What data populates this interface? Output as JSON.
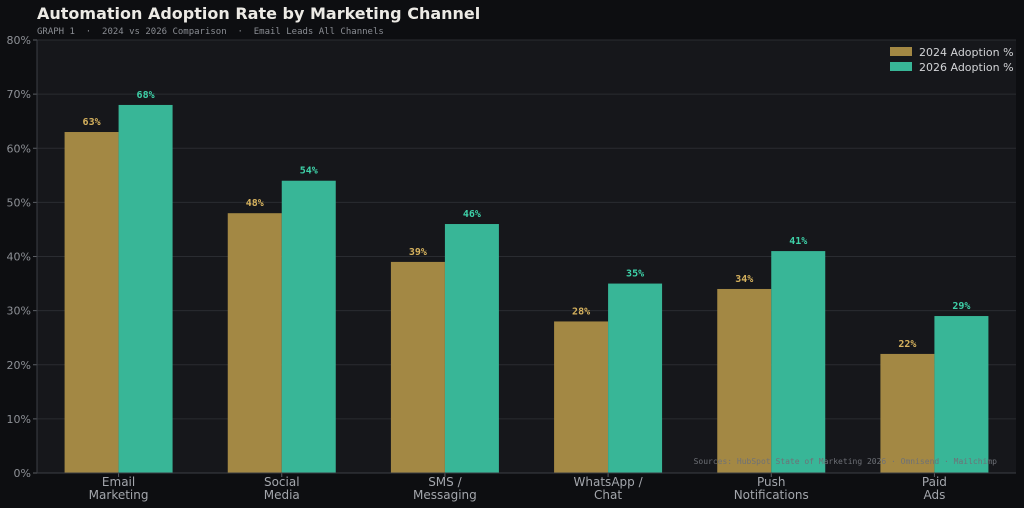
{
  "chart_data": {
    "type": "bar",
    "title": "Automation Adoption Rate by Marketing Channel",
    "subtitle": "GRAPH 1  ·  2024 vs 2026 Comparison  ·  Email Leads All Channels",
    "categories": [
      [
        "Email",
        "Marketing"
      ],
      [
        "Social",
        "Media"
      ],
      [
        "SMS /",
        "Messaging"
      ],
      [
        "WhatsApp /",
        "Chat"
      ],
      [
        "Push",
        "Notifications"
      ],
      [
        "Paid",
        "Ads"
      ]
    ],
    "series": [
      {
        "name": "2024 Adoption %",
        "values": [
          63,
          48,
          39,
          28,
          34,
          22
        ],
        "color": "#a38844"
      },
      {
        "name": "2026 Adoption %",
        "values": [
          68,
          54,
          46,
          35,
          41,
          29
        ],
        "color": "#38b697"
      }
    ],
    "label_colors": [
      "#d6b25e",
      "#3ed1a8"
    ],
    "ylim": [
      0,
      80
    ],
    "yticks": [
      0,
      10,
      20,
      30,
      40,
      50,
      60,
      70,
      80
    ],
    "tick_suffix": "%",
    "legend_position": "top-right",
    "grid": true,
    "source_note": "Sources: HubSpot State of Marketing 2026 · Omnisend · Mailchimp"
  }
}
